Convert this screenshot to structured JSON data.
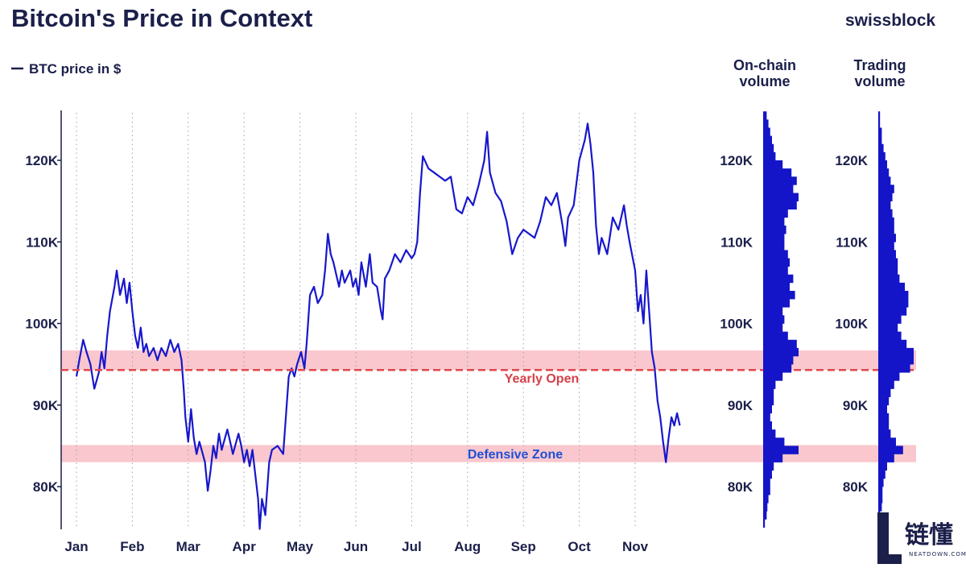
{
  "header": {
    "title": "Bitcoin's Price in Context",
    "brand": "swissblock",
    "legend_label": "BTC price in $"
  },
  "colors": {
    "price_line": "#1717cc",
    "text": "#1b1f4a",
    "band_fill": "#f7b9c1",
    "yearly_open_line": "#e0484d",
    "yearly_open_label": "#d6404a",
    "defensive_label": "#1f4fd6",
    "volume_bar": "#1414c8"
  },
  "chart_data": {
    "type": "line",
    "title": "Bitcoin's Price in Context",
    "series_name": "BTC price in $",
    "months": [
      "Jan",
      "Feb",
      "Mar",
      "Apr",
      "May",
      "Jun",
      "Jul",
      "Aug",
      "Sep",
      "Oct",
      "Nov"
    ],
    "ylim": [
      75000,
      126000
    ],
    "y_ticks": [
      80000,
      90000,
      100000,
      110000,
      120000
    ],
    "y_tick_labels": [
      "80K",
      "90K",
      "100K",
      "110K",
      "120K"
    ],
    "month_index_range": [
      0,
      10.8
    ],
    "price_points": [
      [
        0.0,
        93500
      ],
      [
        0.05,
        95500
      ],
      [
        0.12,
        98000
      ],
      [
        0.18,
        96500
      ],
      [
        0.25,
        95000
      ],
      [
        0.32,
        92000
      ],
      [
        0.4,
        94000
      ],
      [
        0.45,
        96500
      ],
      [
        0.5,
        94500
      ],
      [
        0.55,
        98500
      ],
      [
        0.6,
        101500
      ],
      [
        0.68,
        104500
      ],
      [
        0.72,
        106500
      ],
      [
        0.78,
        103500
      ],
      [
        0.85,
        105500
      ],
      [
        0.9,
        102500
      ],
      [
        0.95,
        105000
      ],
      [
        1.0,
        101500
      ],
      [
        1.05,
        98500
      ],
      [
        1.1,
        97000
      ],
      [
        1.15,
        99500
      ],
      [
        1.2,
        96500
      ],
      [
        1.25,
        97500
      ],
      [
        1.3,
        96000
      ],
      [
        1.38,
        97000
      ],
      [
        1.45,
        95500
      ],
      [
        1.52,
        97000
      ],
      [
        1.6,
        96000
      ],
      [
        1.68,
        98000
      ],
      [
        1.75,
        96500
      ],
      [
        1.82,
        97500
      ],
      [
        1.88,
        95500
      ],
      [
        1.92,
        92000
      ],
      [
        1.95,
        88500
      ],
      [
        2.0,
        85500
      ],
      [
        2.05,
        89500
      ],
      [
        2.1,
        86000
      ],
      [
        2.15,
        84000
      ],
      [
        2.2,
        85500
      ],
      [
        2.3,
        83000
      ],
      [
        2.35,
        79500
      ],
      [
        2.4,
        82000
      ],
      [
        2.45,
        85000
      ],
      [
        2.5,
        83500
      ],
      [
        2.55,
        86500
      ],
      [
        2.6,
        84500
      ],
      [
        2.7,
        87000
      ],
      [
        2.75,
        85500
      ],
      [
        2.8,
        84000
      ],
      [
        2.9,
        86500
      ],
      [
        2.95,
        85000
      ],
      [
        3.0,
        83000
      ],
      [
        3.05,
        84500
      ],
      [
        3.1,
        82500
      ],
      [
        3.15,
        84500
      ],
      [
        3.2,
        81500
      ],
      [
        3.25,
        78500
      ],
      [
        3.28,
        74800
      ],
      [
        3.32,
        78500
      ],
      [
        3.38,
        76500
      ],
      [
        3.45,
        83000
      ],
      [
        3.5,
        84500
      ],
      [
        3.6,
        85000
      ],
      [
        3.7,
        84000
      ],
      [
        3.8,
        93500
      ],
      [
        3.85,
        94500
      ],
      [
        3.9,
        93500
      ],
      [
        3.95,
        95000
      ],
      [
        4.02,
        96500
      ],
      [
        4.08,
        94500
      ],
      [
        4.12,
        97500
      ],
      [
        4.18,
        103500
      ],
      [
        4.25,
        104500
      ],
      [
        4.32,
        102500
      ],
      [
        4.4,
        103500
      ],
      [
        4.45,
        106500
      ],
      [
        4.5,
        111000
      ],
      [
        4.55,
        108500
      ],
      [
        4.6,
        107500
      ],
      [
        4.7,
        104500
      ],
      [
        4.75,
        106500
      ],
      [
        4.8,
        105000
      ],
      [
        4.9,
        106500
      ],
      [
        4.95,
        104500
      ],
      [
        5.0,
        105500
      ],
      [
        5.05,
        103500
      ],
      [
        5.1,
        107500
      ],
      [
        5.18,
        104500
      ],
      [
        5.25,
        108500
      ],
      [
        5.3,
        105000
      ],
      [
        5.38,
        104500
      ],
      [
        5.45,
        101500
      ],
      [
        5.48,
        100500
      ],
      [
        5.52,
        105500
      ],
      [
        5.6,
        106500
      ],
      [
        5.65,
        107500
      ],
      [
        5.7,
        108500
      ],
      [
        5.8,
        107500
      ],
      [
        5.9,
        109000
      ],
      [
        6.0,
        108000
      ],
      [
        6.05,
        108500
      ],
      [
        6.1,
        110000
      ],
      [
        6.15,
        116000
      ],
      [
        6.2,
        120500
      ],
      [
        6.3,
        119000
      ],
      [
        6.4,
        118500
      ],
      [
        6.5,
        118000
      ],
      [
        6.6,
        117500
      ],
      [
        6.7,
        118000
      ],
      [
        6.8,
        114000
      ],
      [
        6.9,
        113500
      ],
      [
        7.0,
        115500
      ],
      [
        7.1,
        114500
      ],
      [
        7.2,
        117000
      ],
      [
        7.3,
        120000
      ],
      [
        7.35,
        123500
      ],
      [
        7.4,
        118500
      ],
      [
        7.5,
        116000
      ],
      [
        7.6,
        115000
      ],
      [
        7.7,
        112500
      ],
      [
        7.8,
        108500
      ],
      [
        7.9,
        110500
      ],
      [
        8.0,
        111500
      ],
      [
        8.1,
        111000
      ],
      [
        8.2,
        110500
      ],
      [
        8.3,
        112500
      ],
      [
        8.4,
        115500
      ],
      [
        8.5,
        114500
      ],
      [
        8.6,
        116000
      ],
      [
        8.7,
        112000
      ],
      [
        8.75,
        109500
      ],
      [
        8.8,
        113000
      ],
      [
        8.9,
        114500
      ],
      [
        9.0,
        120000
      ],
      [
        9.1,
        122500
      ],
      [
        9.15,
        124500
      ],
      [
        9.2,
        122000
      ],
      [
        9.25,
        118500
      ],
      [
        9.3,
        112000
      ],
      [
        9.35,
        108500
      ],
      [
        9.4,
        110500
      ],
      [
        9.5,
        108500
      ],
      [
        9.6,
        113000
      ],
      [
        9.7,
        111500
      ],
      [
        9.8,
        114500
      ],
      [
        9.85,
        112000
      ],
      [
        9.9,
        110000
      ],
      [
        10.0,
        106500
      ],
      [
        10.05,
        101500
      ],
      [
        10.1,
        103500
      ],
      [
        10.15,
        100000
      ],
      [
        10.2,
        106500
      ],
      [
        10.25,
        101500
      ],
      [
        10.3,
        96500
      ],
      [
        10.35,
        94500
      ],
      [
        10.4,
        90500
      ],
      [
        10.45,
        88500
      ],
      [
        10.5,
        85500
      ],
      [
        10.55,
        83000
      ],
      [
        10.6,
        86000
      ],
      [
        10.65,
        88500
      ],
      [
        10.7,
        87500
      ],
      [
        10.75,
        89000
      ],
      [
        10.8,
        87500
      ]
    ],
    "yearly_open": {
      "value": 94300,
      "label": "Yearly Open"
    },
    "bands": [
      {
        "from": 94300,
        "to": 96700
      },
      {
        "from": 83000,
        "to": 85100,
        "label": "Defensive Zone"
      }
    ],
    "volume_bin_prices": [
      75000,
      76000,
      77000,
      78000,
      79000,
      80000,
      81000,
      82000,
      83000,
      84000,
      85000,
      86000,
      87000,
      88000,
      89000,
      90000,
      91000,
      92000,
      93000,
      94000,
      95000,
      96000,
      97000,
      98000,
      99000,
      100000,
      101000,
      102000,
      103000,
      104000,
      105000,
      106000,
      107000,
      108000,
      109000,
      110000,
      111000,
      112000,
      113000,
      114000,
      115000,
      116000,
      117000,
      118000,
      119000,
      120000,
      121000,
      122000,
      123000,
      124000,
      125000
    ],
    "volume_panels": [
      {
        "title_line1": "On-chain",
        "title_line2": "volume",
        "y_tick_labels": [
          "80K",
          "90K",
          "100K",
          "110K",
          "120K"
        ],
        "values": [
          0.05,
          0.1,
          0.12,
          0.15,
          0.2,
          0.2,
          0.25,
          0.3,
          0.55,
          1.0,
          0.6,
          0.35,
          0.25,
          0.2,
          0.25,
          0.3,
          0.3,
          0.35,
          0.55,
          0.8,
          0.85,
          1.0,
          0.95,
          0.7,
          0.55,
          0.6,
          0.55,
          0.75,
          0.9,
          0.75,
          0.85,
          0.7,
          0.75,
          0.7,
          0.6,
          0.6,
          0.65,
          0.6,
          0.7,
          0.95,
          1.0,
          0.85,
          0.95,
          0.8,
          0.55,
          0.35,
          0.3,
          0.25,
          0.2,
          0.15,
          0.1
        ]
      },
      {
        "title_line1": "Trading",
        "title_line2": "volume",
        "y_tick_labels": [
          "80K",
          "90K",
          "100K",
          "110K",
          "120K"
        ],
        "values": [
          0.05,
          0.05,
          0.1,
          0.12,
          0.12,
          0.15,
          0.2,
          0.25,
          0.45,
          0.7,
          0.5,
          0.35,
          0.3,
          0.3,
          0.25,
          0.3,
          0.35,
          0.45,
          0.6,
          0.9,
          1.0,
          1.0,
          0.8,
          0.65,
          0.55,
          0.65,
          0.8,
          0.85,
          0.85,
          0.75,
          0.6,
          0.55,
          0.55,
          0.5,
          0.45,
          0.5,
          0.45,
          0.45,
          0.4,
          0.35,
          0.4,
          0.45,
          0.35,
          0.3,
          0.25,
          0.2,
          0.15,
          0.1,
          0.1,
          0.05,
          0.05
        ]
      }
    ]
  },
  "watermark": {
    "glyphs": "链懂",
    "caption": "NEATDOWN.COM"
  }
}
